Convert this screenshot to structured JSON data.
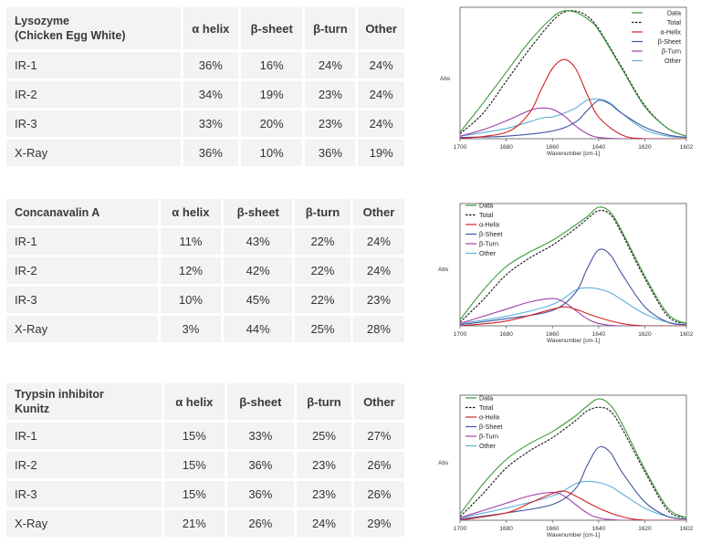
{
  "tables": [
    {
      "protein": "Lysozyme (Chicken Egg White)",
      "protein_lines": [
        "Lysozyme",
        "(Chicken Egg White)"
      ],
      "columns": [
        "α helix",
        "β-sheet",
        "β-turn",
        "Other"
      ],
      "rows": [
        {
          "label": "IR-1",
          "values": [
            "36%",
            "16%",
            "24%",
            "24%"
          ]
        },
        {
          "label": "IR-2",
          "values": [
            "34%",
            "19%",
            "23%",
            "24%"
          ]
        },
        {
          "label": "IR-3",
          "values": [
            "33%",
            "20%",
            "23%",
            "24%"
          ]
        },
        {
          "label": "X-Ray",
          "values": [
            "36%",
            "10%",
            "36%",
            "19%"
          ]
        }
      ]
    },
    {
      "protein": "Concanavalin A",
      "protein_lines": [
        "Concanavalin A"
      ],
      "columns": [
        "α helix",
        "β-sheet",
        "β-turn",
        "Other"
      ],
      "rows": [
        {
          "label": "IR-1",
          "values": [
            "11%",
            "43%",
            "22%",
            "24%"
          ]
        },
        {
          "label": "IR-2",
          "values": [
            "12%",
            "42%",
            "22%",
            "24%"
          ]
        },
        {
          "label": "IR-3",
          "values": [
            "10%",
            "45%",
            "22%",
            "23%"
          ]
        },
        {
          "label": "X-Ray",
          "values": [
            "3%",
            "44%",
            "25%",
            "28%"
          ]
        }
      ]
    },
    {
      "protein": "Trypsin inhibitor Kunitz",
      "protein_lines": [
        "Trypsin inhibitor",
        "Kunitz"
      ],
      "columns": [
        "α helix",
        "β-sheet",
        "β-turn",
        "Other"
      ],
      "rows": [
        {
          "label": "IR-1",
          "values": [
            "15%",
            "33%",
            "25%",
            "27%"
          ]
        },
        {
          "label": "IR-2",
          "values": [
            "15%",
            "36%",
            "23%",
            "26%"
          ]
        },
        {
          "label": "IR-3",
          "values": [
            "15%",
            "36%",
            "23%",
            "26%"
          ]
        },
        {
          "label": "X-Ray",
          "values": [
            "21%",
            "26%",
            "24%",
            "29%"
          ]
        }
      ]
    }
  ],
  "chart_data": [
    {
      "type": "line",
      "xlabel": "Wavenumber [cm-1]",
      "ylabel": "Abs",
      "xlim": [
        1700,
        1602
      ],
      "ylim": [
        0,
        1
      ],
      "x_ticks": [
        "1700",
        "1680",
        "1660",
        "1640",
        "1620",
        "1602"
      ],
      "legend_position": "top-right",
      "series": [
        {
          "name": "Data",
          "color": "#3a9a3a",
          "dash": false,
          "x": [
            1700,
            1690,
            1680,
            1670,
            1660,
            1655,
            1650,
            1645,
            1640,
            1630,
            1620,
            1610,
            1602
          ],
          "y": [
            0.05,
            0.28,
            0.52,
            0.76,
            0.95,
            1.0,
            0.99,
            0.94,
            0.85,
            0.55,
            0.25,
            0.08,
            0.02
          ]
        },
        {
          "name": "Total",
          "color": "#111111",
          "dash": true,
          "x": [
            1700,
            1690,
            1680,
            1670,
            1660,
            1655,
            1650,
            1645,
            1640,
            1630,
            1620,
            1610,
            1602
          ],
          "y": [
            0.04,
            0.2,
            0.45,
            0.7,
            0.92,
            0.99,
            1.0,
            0.96,
            0.86,
            0.56,
            0.26,
            0.08,
            0.02
          ]
        },
        {
          "name": "α-Helix",
          "color": "#d42020",
          "dash": false,
          "x": [
            1700,
            1680,
            1670,
            1665,
            1660,
            1655,
            1650,
            1645,
            1640,
            1630,
            1620,
            1602
          ],
          "y": [
            0.0,
            0.05,
            0.2,
            0.38,
            0.55,
            0.62,
            0.55,
            0.35,
            0.17,
            0.03,
            0.0,
            0.0
          ]
        },
        {
          "name": "β-Sheet",
          "color": "#4055a0",
          "dash": false,
          "x": [
            1700,
            1680,
            1660,
            1650,
            1645,
            1640,
            1635,
            1630,
            1620,
            1610,
            1602
          ],
          "y": [
            0.01,
            0.02,
            0.06,
            0.13,
            0.22,
            0.3,
            0.27,
            0.2,
            0.09,
            0.03,
            0.01
          ]
        },
        {
          "name": "β-Turn",
          "color": "#a040a8",
          "dash": false,
          "x": [
            1700,
            1690,
            1680,
            1670,
            1665,
            1660,
            1655,
            1650,
            1645,
            1640,
            1630,
            1602
          ],
          "y": [
            0.02,
            0.07,
            0.14,
            0.22,
            0.24,
            0.23,
            0.18,
            0.1,
            0.04,
            0.01,
            0.0,
            0.0
          ]
        },
        {
          "name": "Other",
          "color": "#60b0d8",
          "dash": false,
          "x": [
            1700,
            1680,
            1665,
            1660,
            1655,
            1650,
            1645,
            1640,
            1635,
            1630,
            1620,
            1610,
            1602
          ],
          "y": [
            0.02,
            0.08,
            0.16,
            0.17,
            0.2,
            0.24,
            0.3,
            0.31,
            0.28,
            0.2,
            0.07,
            0.02,
            0.01
          ]
        }
      ]
    },
    {
      "type": "line",
      "xlabel": "Wavenumber [cm-1]",
      "ylabel": "Abs",
      "xlim": [
        1700,
        1602
      ],
      "ylim": [
        0,
        1
      ],
      "x_ticks": [
        "1700",
        "1680",
        "1660",
        "1640",
        "1620",
        "1602"
      ],
      "legend_position": "top-left",
      "series": [
        {
          "name": "Data",
          "color": "#3a9a3a",
          "dash": false,
          "x": [
            1700,
            1690,
            1680,
            1670,
            1660,
            1650,
            1645,
            1640,
            1635,
            1630,
            1620,
            1610,
            1602
          ],
          "y": [
            0.05,
            0.3,
            0.5,
            0.62,
            0.72,
            0.85,
            0.92,
            1.0,
            0.96,
            0.8,
            0.42,
            0.1,
            0.02
          ]
        },
        {
          "name": "Total",
          "color": "#111111",
          "dash": true,
          "x": [
            1700,
            1690,
            1680,
            1670,
            1660,
            1650,
            1645,
            1640,
            1635,
            1630,
            1620,
            1610,
            1602
          ],
          "y": [
            0.03,
            0.22,
            0.43,
            0.57,
            0.68,
            0.82,
            0.9,
            0.97,
            0.94,
            0.78,
            0.4,
            0.08,
            0.02
          ]
        },
        {
          "name": "α-Helix",
          "color": "#d42020",
          "dash": false,
          "x": [
            1700,
            1680,
            1660,
            1655,
            1650,
            1640,
            1630,
            1620,
            1602
          ],
          "y": [
            0.0,
            0.04,
            0.14,
            0.16,
            0.14,
            0.07,
            0.02,
            0.0,
            0.0
          ]
        },
        {
          "name": "β-Sheet",
          "color": "#4055a0",
          "dash": false,
          "x": [
            1700,
            1680,
            1660,
            1650,
            1645,
            1640,
            1635,
            1630,
            1620,
            1610,
            1602
          ],
          "y": [
            0.01,
            0.06,
            0.13,
            0.28,
            0.48,
            0.64,
            0.6,
            0.44,
            0.16,
            0.03,
            0.01
          ]
        },
        {
          "name": "β-Turn",
          "color": "#a040a8",
          "dash": false,
          "x": [
            1700,
            1690,
            1680,
            1670,
            1660,
            1655,
            1650,
            1645,
            1640,
            1630,
            1602
          ],
          "y": [
            0.02,
            0.08,
            0.14,
            0.2,
            0.23,
            0.2,
            0.13,
            0.06,
            0.02,
            0.0,
            0.0
          ]
        },
        {
          "name": "Other",
          "color": "#60b0d8",
          "dash": false,
          "x": [
            1700,
            1680,
            1660,
            1650,
            1645,
            1640,
            1635,
            1630,
            1620,
            1610,
            1602
          ],
          "y": [
            0.02,
            0.08,
            0.18,
            0.3,
            0.32,
            0.31,
            0.28,
            0.22,
            0.1,
            0.03,
            0.01
          ]
        }
      ]
    },
    {
      "type": "line",
      "xlabel": "Wavenumber [cm-1]",
      "ylabel": "Abs",
      "xlim": [
        1700,
        1602
      ],
      "ylim": [
        0,
        1
      ],
      "x_ticks": [
        "1700",
        "1680",
        "1660",
        "1640",
        "1620",
        "1602"
      ],
      "legend_position": "top-left",
      "series": [
        {
          "name": "Data",
          "color": "#3a9a3a",
          "dash": false,
          "x": [
            1700,
            1690,
            1680,
            1670,
            1660,
            1650,
            1645,
            1640,
            1635,
            1630,
            1620,
            1610,
            1602
          ],
          "y": [
            0.05,
            0.3,
            0.5,
            0.63,
            0.73,
            0.86,
            0.94,
            1.0,
            0.95,
            0.8,
            0.42,
            0.1,
            0.02
          ]
        },
        {
          "name": "Total",
          "color": "#111111",
          "dash": true,
          "x": [
            1700,
            1690,
            1680,
            1670,
            1660,
            1650,
            1645,
            1640,
            1635,
            1630,
            1620,
            1610,
            1602
          ],
          "y": [
            0.03,
            0.22,
            0.43,
            0.57,
            0.68,
            0.82,
            0.9,
            0.93,
            0.9,
            0.76,
            0.4,
            0.08,
            0.02
          ]
        },
        {
          "name": "α-Helix",
          "color": "#d42020",
          "dash": false,
          "x": [
            1700,
            1680,
            1670,
            1660,
            1655,
            1650,
            1640,
            1630,
            1620,
            1602
          ],
          "y": [
            0.0,
            0.06,
            0.14,
            0.22,
            0.24,
            0.2,
            0.1,
            0.03,
            0.0,
            0.0
          ]
        },
        {
          "name": "β-Sheet",
          "color": "#4055a0",
          "dash": false,
          "x": [
            1700,
            1680,
            1660,
            1650,
            1645,
            1640,
            1635,
            1630,
            1620,
            1610,
            1602
          ],
          "y": [
            0.01,
            0.06,
            0.13,
            0.26,
            0.45,
            0.6,
            0.56,
            0.4,
            0.15,
            0.03,
            0.01
          ]
        },
        {
          "name": "β-Turn",
          "color": "#a040a8",
          "dash": false,
          "x": [
            1700,
            1690,
            1680,
            1670,
            1660,
            1655,
            1650,
            1645,
            1640,
            1630,
            1602
          ],
          "y": [
            0.02,
            0.08,
            0.14,
            0.2,
            0.23,
            0.2,
            0.13,
            0.06,
            0.02,
            0.0,
            0.0
          ]
        },
        {
          "name": "Other",
          "color": "#60b0d8",
          "dash": false,
          "x": [
            1700,
            1680,
            1660,
            1650,
            1645,
            1640,
            1635,
            1630,
            1620,
            1610,
            1602
          ],
          "y": [
            0.02,
            0.1,
            0.2,
            0.3,
            0.32,
            0.31,
            0.28,
            0.22,
            0.1,
            0.03,
            0.01
          ]
        }
      ]
    }
  ]
}
